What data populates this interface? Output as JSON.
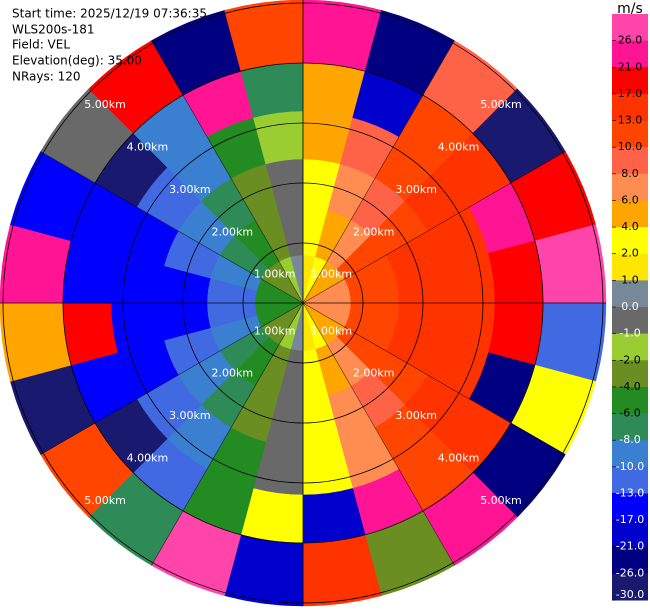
{
  "chart_data": {
    "type": "ppi",
    "info": [
      "Start time: 2025/12/19 07:36:35",
      "WLS200s-181",
      "Field: VEL",
      "Elevation(deg): 35.00",
      "NRays: 120"
    ],
    "rlim": [
      0,
      5.05
    ],
    "range_rings": [
      {
        "value": 1,
        "label": "1.00km"
      },
      {
        "value": 2,
        "label": "2.00km"
      },
      {
        "value": 3,
        "label": "3.00km"
      },
      {
        "value": 4,
        "label": "4.00km"
      },
      {
        "value": 5,
        "label": "5.00km"
      }
    ],
    "azimuths": [
      0,
      15,
      30,
      45,
      60,
      75,
      90,
      105,
      120,
      135,
      150,
      165,
      180,
      195,
      210,
      225,
      240,
      255,
      270,
      285,
      300,
      315,
      330,
      345
    ],
    "range_bins": [
      0,
      0.8,
      1.6,
      2.4,
      3.2,
      4.0,
      5.05
    ],
    "velocity": [
      [
        1,
        2,
        4,
        5,
        6,
        6,
        6,
        6,
        5,
        4,
        2,
        1,
        0,
        -2,
        -3,
        -4,
        -5,
        -6,
        -6,
        -5,
        -4,
        -3,
        -2,
        0
      ],
      [
        2,
        5,
        7,
        10,
        11,
        12,
        12,
        11,
        10,
        7,
        5,
        2,
        -1,
        -3,
        -6,
        -8,
        -10,
        -11,
        -11,
        -10,
        -8,
        -6,
        -3,
        -1
      ],
      [
        3,
        6,
        9,
        12,
        14,
        15,
        15,
        14,
        12,
        9,
        6,
        3,
        -1,
        -4,
        -8,
        -10,
        -12,
        -14,
        -14,
        -12,
        -10,
        -8,
        -4,
        -1
      ],
      [
        4,
        8,
        11,
        14,
        16,
        16,
        16,
        15,
        13,
        10,
        7,
        3,
        -1,
        -5,
        -9,
        -12,
        -14,
        -16,
        -16,
        -14,
        -12,
        -9,
        -5,
        -2
      ],
      [
        5,
        -20,
        12,
        16,
        22,
        18,
        17,
        -25,
        14,
        11,
        24,
        -18,
        3,
        -6,
        -11,
        -27,
        -15,
        19,
        -17,
        -15,
        -28,
        -10,
        22,
        -7
      ],
      [
        25,
        -22,
        8,
        -29,
        18,
        27,
        -12,
        2,
        -24,
        21,
        -3,
        16,
        -19,
        28,
        -8,
        12,
        -27,
        5,
        23,
        -14,
        -1,
        19,
        -23,
        10
      ]
    ],
    "colorbar": {
      "label": "m/s",
      "ticks": [
        {
          "value": 26,
          "label": "26.0"
        },
        {
          "value": 21,
          "label": "21.0"
        },
        {
          "value": 17,
          "label": "17.0"
        },
        {
          "value": 13,
          "label": "13.0"
        },
        {
          "value": 10,
          "label": "10.0"
        },
        {
          "value": 8,
          "label": "8.0"
        },
        {
          "value": 6,
          "label": "6.0"
        },
        {
          "value": 4,
          "label": "4.0"
        },
        {
          "value": 2,
          "label": "2.0"
        },
        {
          "value": 1,
          "label": "1.0"
        },
        {
          "value": 0,
          "label": "0.0"
        },
        {
          "value": -1,
          "label": "-1.0"
        },
        {
          "value": -2,
          "label": "-2.0"
        },
        {
          "value": -4,
          "label": "-4.0"
        },
        {
          "value": -6,
          "label": "-6.0"
        },
        {
          "value": -8,
          "label": "-8.0"
        },
        {
          "value": -10,
          "label": "-10.0"
        },
        {
          "value": -13,
          "label": "-13.0"
        },
        {
          "value": -17,
          "label": "-17.0"
        },
        {
          "value": -21,
          "label": "-21.0"
        },
        {
          "value": -26,
          "label": "-26.0"
        },
        {
          "value": -30,
          "label": "-30.0"
        }
      ],
      "colors": [
        "#ff44aa",
        "#ff1493",
        "#ff0000",
        "#ff3300",
        "#ff4500",
        "#ff6347",
        "#ff8c50",
        "#ffa500",
        "#ffff00",
        "#ffe600",
        "#778899",
        "#696969",
        "#9acd32",
        "#6b8e23",
        "#228b22",
        "#2e8b57",
        "#3a7fd0",
        "#4169e1",
        "#0000ff",
        "#0000cd",
        "#000080",
        "#191970"
      ]
    }
  }
}
